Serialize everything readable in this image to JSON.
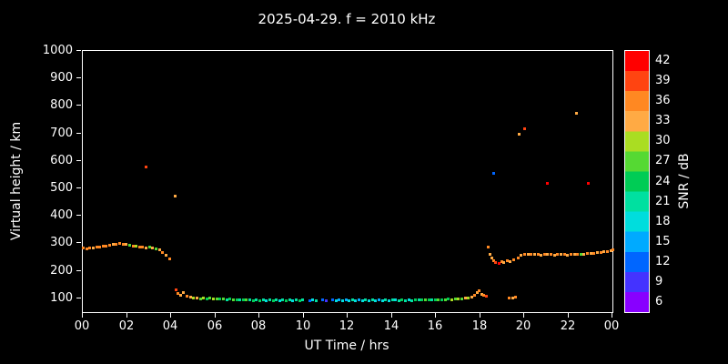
{
  "title": "2025-04-29. f = 2010 kHz",
  "colors": {
    "background": "#000000",
    "foreground": "#ffffff"
  },
  "colormap": [
    {
      "v": 6,
      "c": "#8800ff"
    },
    {
      "v": 9,
      "c": "#4433ff"
    },
    {
      "v": 12,
      "c": "#0066ff"
    },
    {
      "v": 15,
      "c": "#00aaff"
    },
    {
      "v": 18,
      "c": "#00dddd"
    },
    {
      "v": 21,
      "c": "#00e0a0"
    },
    {
      "v": 24,
      "c": "#00cc55"
    },
    {
      "v": 27,
      "c": "#55d933"
    },
    {
      "v": 30,
      "c": "#aadd22"
    },
    {
      "v": 33,
      "c": "#ffaa44"
    },
    {
      "v": 36,
      "c": "#ff8822"
    },
    {
      "v": 39,
      "c": "#ff4411"
    },
    {
      "v": 42,
      "c": "#ff0000"
    }
  ],
  "chart_data": {
    "type": "scatter",
    "title": "2025-04-29. f = 2010 kHz",
    "xlabel": "UT Time / hrs",
    "ylabel": "Virtual height / km",
    "colorbar_label": "SNR / dB",
    "xlim": [
      0,
      24
    ],
    "ylim": [
      50,
      1000
    ],
    "cblim": [
      4.5,
      43.5
    ],
    "x_tick_values": [
      0,
      2,
      4,
      6,
      8,
      10,
      12,
      14,
      16,
      18,
      20,
      22,
      24
    ],
    "x_tick_labels": [
      "00",
      "02",
      "04",
      "06",
      "08",
      "10",
      "12",
      "14",
      "16",
      "18",
      "20",
      "22",
      "00"
    ],
    "y_tick_values": [
      100,
      200,
      300,
      400,
      500,
      600,
      700,
      800,
      900,
      1000
    ],
    "y_tick_labels": [
      "100",
      "200",
      "300",
      "400",
      "500",
      "600",
      "700",
      "800",
      "900",
      "1000"
    ],
    "cb_tick_values": [
      6,
      9,
      12,
      15,
      18,
      21,
      24,
      27,
      30,
      33,
      36,
      39,
      42
    ],
    "grid": false,
    "points_format": [
      "ut_hours",
      "virtual_height_km",
      "snr_db"
    ],
    "points": [
      [
        0.0,
        284,
        36
      ],
      [
        0.15,
        283,
        35
      ],
      [
        0.3,
        285,
        36
      ],
      [
        0.45,
        286,
        34
      ],
      [
        0.6,
        287,
        36
      ],
      [
        0.75,
        289,
        35
      ],
      [
        0.9,
        291,
        36
      ],
      [
        1.05,
        293,
        35
      ],
      [
        1.2,
        295,
        36
      ],
      [
        1.35,
        297,
        34
      ],
      [
        1.5,
        299,
        36
      ],
      [
        1.65,
        300,
        35
      ],
      [
        1.8,
        299,
        36
      ],
      [
        1.95,
        297,
        34
      ],
      [
        2.1,
        295,
        27
      ],
      [
        2.25,
        293,
        35
      ],
      [
        2.4,
        291,
        30
      ],
      [
        2.55,
        289,
        35
      ],
      [
        2.7,
        287,
        36
      ],
      [
        2.85,
        286,
        33
      ],
      [
        3.0,
        288,
        27
      ],
      [
        3.15,
        286,
        34
      ],
      [
        3.3,
        283,
        27
      ],
      [
        3.45,
        278,
        33
      ],
      [
        3.6,
        268,
        35
      ],
      [
        3.75,
        257,
        33
      ],
      [
        3.9,
        245,
        35
      ],
      [
        2.85,
        580,
        40
      ],
      [
        4.15,
        475,
        34
      ],
      [
        4.2,
        132,
        39
      ],
      [
        4.3,
        120,
        36
      ],
      [
        4.4,
        114,
        34
      ],
      [
        4.55,
        124,
        33
      ],
      [
        4.7,
        110,
        36
      ],
      [
        4.85,
        107,
        33
      ],
      [
        5.0,
        104,
        30
      ],
      [
        5.15,
        102,
        33
      ],
      [
        5.3,
        100,
        27
      ],
      [
        5.45,
        102,
        30
      ],
      [
        5.6,
        100,
        24
      ],
      [
        5.75,
        102,
        27
      ],
      [
        5.9,
        99,
        30
      ],
      [
        6.05,
        100,
        27
      ],
      [
        6.2,
        98,
        24
      ],
      [
        6.35,
        99,
        27
      ],
      [
        6.5,
        97,
        21
      ],
      [
        6.65,
        98,
        24
      ],
      [
        6.8,
        96,
        27
      ],
      [
        6.95,
        97,
        24
      ],
      [
        7.1,
        95,
        21
      ],
      [
        7.25,
        96,
        24
      ],
      [
        7.4,
        95,
        27
      ],
      [
        7.55,
        95,
        21
      ],
      [
        7.7,
        94,
        24
      ],
      [
        7.85,
        95,
        21
      ],
      [
        8.0,
        94,
        24
      ],
      [
        8.15,
        95,
        21
      ],
      [
        8.3,
        94,
        18
      ],
      [
        8.45,
        95,
        21
      ],
      [
        8.6,
        94,
        24
      ],
      [
        8.75,
        95,
        21
      ],
      [
        8.9,
        94,
        18
      ],
      [
        9.05,
        95,
        21
      ],
      [
        9.2,
        94,
        24
      ],
      [
        9.35,
        95,
        21
      ],
      [
        9.5,
        94,
        18
      ],
      [
        9.65,
        95,
        21
      ],
      [
        9.8,
        94,
        24
      ],
      [
        9.95,
        95,
        21
      ],
      [
        10.25,
        94,
        12
      ],
      [
        10.4,
        95,
        18
      ],
      [
        10.55,
        94,
        21
      ],
      [
        10.85,
        95,
        12
      ],
      [
        11.0,
        94,
        9
      ],
      [
        11.3,
        95,
        12
      ],
      [
        11.45,
        94,
        18
      ],
      [
        11.6,
        95,
        15
      ],
      [
        11.75,
        94,
        18
      ],
      [
        11.9,
        95,
        15
      ],
      [
        12.05,
        94,
        18
      ],
      [
        12.2,
        95,
        21
      ],
      [
        12.35,
        94,
        18
      ],
      [
        12.5,
        95,
        15
      ],
      [
        12.65,
        94,
        18
      ],
      [
        12.8,
        95,
        21
      ],
      [
        12.95,
        94,
        18
      ],
      [
        13.1,
        95,
        21
      ],
      [
        13.25,
        94,
        18
      ],
      [
        13.4,
        95,
        15
      ],
      [
        13.55,
        94,
        18
      ],
      [
        13.7,
        95,
        21
      ],
      [
        13.85,
        94,
        18
      ],
      [
        14.0,
        95,
        21
      ],
      [
        14.15,
        95,
        18
      ],
      [
        14.3,
        94,
        21
      ],
      [
        14.45,
        95,
        24
      ],
      [
        14.6,
        94,
        21
      ],
      [
        14.75,
        95,
        18
      ],
      [
        14.9,
        94,
        21
      ],
      [
        15.05,
        95,
        24
      ],
      [
        15.2,
        95,
        21
      ],
      [
        15.35,
        96,
        24
      ],
      [
        15.5,
        95,
        27
      ],
      [
        15.65,
        96,
        24
      ],
      [
        15.8,
        95,
        21
      ],
      [
        15.95,
        96,
        24
      ],
      [
        16.1,
        95,
        27
      ],
      [
        16.25,
        97,
        24
      ],
      [
        16.4,
        96,
        27
      ],
      [
        16.55,
        98,
        24
      ],
      [
        16.7,
        97,
        30
      ],
      [
        16.85,
        98,
        27
      ],
      [
        17.0,
        100,
        30
      ],
      [
        17.15,
        100,
        27
      ],
      [
        17.3,
        102,
        33
      ],
      [
        17.45,
        104,
        30
      ],
      [
        17.6,
        107,
        34
      ],
      [
        17.75,
        113,
        36
      ],
      [
        17.85,
        124,
        34
      ],
      [
        17.95,
        130,
        36
      ],
      [
        18.05,
        117,
        34
      ],
      [
        18.15,
        112,
        36
      ],
      [
        18.25,
        108,
        39
      ],
      [
        18.35,
        288,
        36
      ],
      [
        18.45,
        262,
        34
      ],
      [
        18.5,
        248,
        33
      ],
      [
        18.6,
        238,
        36
      ],
      [
        18.7,
        232,
        39
      ],
      [
        18.85,
        228,
        41
      ],
      [
        18.95,
        236,
        36
      ],
      [
        19.05,
        231,
        34
      ],
      [
        19.2,
        238,
        36
      ],
      [
        19.35,
        234,
        33
      ],
      [
        19.5,
        241,
        36
      ],
      [
        19.3,
        104,
        36
      ],
      [
        19.45,
        102,
        34
      ],
      [
        19.6,
        107,
        36
      ],
      [
        19.7,
        250,
        36
      ],
      [
        19.85,
        257,
        34
      ],
      [
        20.0,
        261,
        36
      ],
      [
        20.15,
        263,
        34
      ],
      [
        20.3,
        261,
        36
      ],
      [
        20.45,
        262,
        34
      ],
      [
        20.6,
        262,
        36
      ],
      [
        20.75,
        260,
        34
      ],
      [
        20.9,
        261,
        36
      ],
      [
        21.05,
        262,
        34
      ],
      [
        21.2,
        261,
        36
      ],
      [
        21.35,
        260,
        33
      ],
      [
        21.5,
        261,
        36
      ],
      [
        21.65,
        262,
        34
      ],
      [
        21.8,
        261,
        36
      ],
      [
        21.95,
        260,
        34
      ],
      [
        22.1,
        261,
        36
      ],
      [
        22.25,
        261,
        34
      ],
      [
        22.4,
        262,
        36
      ],
      [
        22.55,
        262,
        27
      ],
      [
        22.7,
        263,
        34
      ],
      [
        22.85,
        264,
        36
      ],
      [
        23.0,
        265,
        34
      ],
      [
        23.15,
        266,
        36
      ],
      [
        23.3,
        267,
        34
      ],
      [
        23.45,
        269,
        36
      ],
      [
        23.6,
        271,
        34
      ],
      [
        23.75,
        273,
        36
      ],
      [
        23.9,
        275,
        34
      ],
      [
        24.0,
        277,
        36
      ],
      [
        18.6,
        555,
        12
      ],
      [
        19.75,
        700,
        34
      ],
      [
        20.0,
        720,
        38
      ],
      [
        22.35,
        775,
        34
      ],
      [
        21.05,
        520,
        41
      ],
      [
        22.9,
        520,
        41
      ]
    ]
  }
}
